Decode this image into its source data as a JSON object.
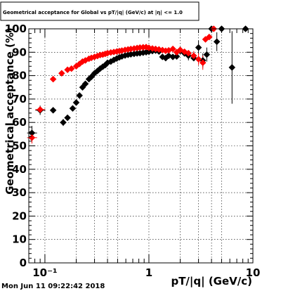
{
  "chart_data": {
    "type": "scatter",
    "title": "Geometrical acceptance for Global vs pT/|q| (GeV/c) at |η| <= 1.0",
    "xlabel": "pT/|q| (GeV/c)",
    "ylabel": "Geometrical acceptance (%)",
    "x_scale": "log",
    "xlim": [
      0.07,
      10
    ],
    "ylim": [
      0,
      100
    ],
    "grid": true,
    "x_tick_labels": [
      {
        "value": 0.1,
        "label": "10⁻¹"
      },
      {
        "value": 1,
        "label": "1"
      },
      {
        "value": 10,
        "label": "10"
      }
    ],
    "y_ticks": [
      0,
      10,
      20,
      30,
      40,
      50,
      60,
      70,
      80,
      90,
      100
    ],
    "timestamp": "Mon Jun 11 09:22:42 2018",
    "series": [
      {
        "color": "#000000",
        "marker": "diamond",
        "points": [
          [
            0.075,
            55.5
          ],
          [
            0.09,
            65.2
          ],
          [
            0.12,
            65.2
          ],
          [
            0.15,
            60
          ],
          [
            0.165,
            62
          ],
          [
            0.185,
            66
          ],
          [
            0.2,
            68.5
          ],
          [
            0.215,
            71.5
          ],
          [
            0.23,
            75
          ],
          [
            0.245,
            76.5
          ],
          [
            0.265,
            78.5
          ],
          [
            0.28,
            79.5
          ],
          [
            0.3,
            81
          ],
          [
            0.32,
            82
          ],
          [
            0.34,
            83
          ],
          [
            0.36,
            83.8
          ],
          [
            0.38,
            84.5
          ],
          [
            0.4,
            85.5
          ],
          [
            0.43,
            86
          ],
          [
            0.46,
            86.7
          ],
          [
            0.49,
            87.3
          ],
          [
            0.52,
            87.8
          ],
          [
            0.55,
            88.2
          ],
          [
            0.59,
            88.6
          ],
          [
            0.63,
            88.9
          ],
          [
            0.67,
            89.1
          ],
          [
            0.72,
            89.3
          ],
          [
            0.77,
            89.5
          ],
          [
            0.82,
            89.6
          ],
          [
            0.88,
            89.8
          ],
          [
            0.94,
            90
          ],
          [
            1.0,
            90.2
          ],
          [
            1.08,
            90.5
          ],
          [
            1.16,
            90.7
          ],
          [
            1.25,
            90.3
          ],
          [
            1.35,
            88
          ],
          [
            1.45,
            87.5
          ],
          [
            1.55,
            88.5
          ],
          [
            1.7,
            88
          ],
          [
            1.85,
            88.2
          ],
          [
            2.0,
            90.5
          ],
          [
            2.2,
            89.5
          ],
          [
            2.4,
            88.5
          ],
          [
            2.7,
            87.5
          ],
          [
            3.0,
            92
          ],
          [
            3.3,
            86.5
          ],
          [
            3.6,
            89
          ],
          [
            4.0,
            100
          ],
          [
            4.5,
            94.5
          ],
          [
            5.0,
            100
          ],
          [
            6.3,
            83.5
          ],
          [
            8.5,
            100
          ]
        ],
        "errors": [
          [
            0.075,
            3
          ],
          [
            0.09,
            2
          ],
          [
            0.15,
            1.5
          ],
          [
            2.4,
            2
          ],
          [
            3.0,
            3
          ],
          [
            3.3,
            3
          ],
          [
            3.6,
            3
          ],
          [
            4.5,
            4
          ],
          [
            6.3,
            15.5
          ]
        ]
      },
      {
        "color": "#ff0000",
        "marker": "diamond",
        "points": [
          [
            0.075,
            53.5
          ],
          [
            0.09,
            65.5
          ],
          [
            0.12,
            78.5
          ],
          [
            0.145,
            81
          ],
          [
            0.165,
            82.5
          ],
          [
            0.18,
            83
          ],
          [
            0.2,
            84
          ],
          [
            0.215,
            85
          ],
          [
            0.23,
            86
          ],
          [
            0.245,
            86.5
          ],
          [
            0.265,
            87.2
          ],
          [
            0.28,
            87.6
          ],
          [
            0.3,
            88
          ],
          [
            0.32,
            88.4
          ],
          [
            0.34,
            88.8
          ],
          [
            0.36,
            89
          ],
          [
            0.38,
            89.3
          ],
          [
            0.4,
            89.6
          ],
          [
            0.43,
            89.9
          ],
          [
            0.46,
            90.1
          ],
          [
            0.49,
            90.3
          ],
          [
            0.52,
            90.5
          ],
          [
            0.55,
            90.7
          ],
          [
            0.59,
            91
          ],
          [
            0.63,
            91.2
          ],
          [
            0.67,
            91.4
          ],
          [
            0.72,
            91.6
          ],
          [
            0.77,
            91.8
          ],
          [
            0.82,
            92
          ],
          [
            0.88,
            92.1
          ],
          [
            0.94,
            92.2
          ],
          [
            1.0,
            91.9
          ],
          [
            1.08,
            91.6
          ],
          [
            1.16,
            91.4
          ],
          [
            1.25,
            91.2
          ],
          [
            1.35,
            90.9
          ],
          [
            1.45,
            90.6
          ],
          [
            1.55,
            90.8
          ],
          [
            1.7,
            91.4
          ],
          [
            1.85,
            90
          ],
          [
            2.0,
            91
          ],
          [
            2.2,
            90.2
          ],
          [
            2.4,
            89.6
          ],
          [
            2.7,
            88.5
          ],
          [
            3.0,
            87
          ],
          [
            3.3,
            85.5
          ],
          [
            3.5,
            95.5
          ],
          [
            3.8,
            96.5
          ],
          [
            4.2,
            100
          ]
        ],
        "errors": [
          [
            0.075,
            2.5
          ],
          [
            2.7,
            2
          ],
          [
            3.0,
            2.5
          ],
          [
            3.3,
            3
          ]
        ]
      }
    ]
  }
}
